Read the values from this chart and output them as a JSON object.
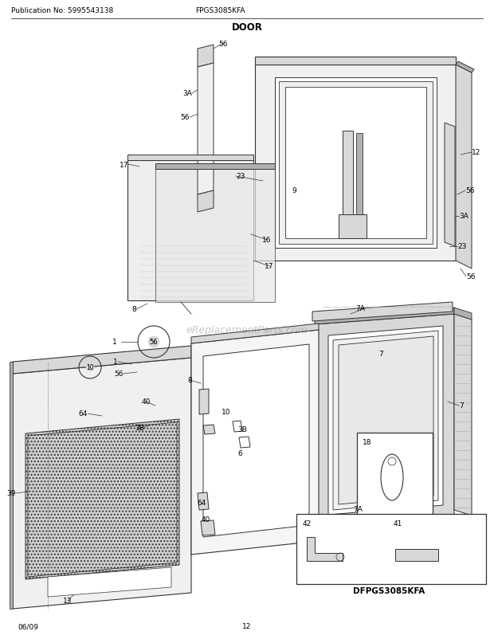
{
  "title": "DOOR",
  "pub_no": "Publication No: 5995543138",
  "model": "FPGS3085KFA",
  "diagram_model": "DFPGS3085KFA",
  "date": "06/09",
  "page": "12",
  "bg_color": "#ffffff",
  "fig_width": 6.2,
  "fig_height": 8.03,
  "dpi": 100,
  "line_color": "#333333",
  "fill_light": "#f0f0f0",
  "fill_mid": "#d8d8d8",
  "fill_dark": "#b0b0b0",
  "fill_hatched": "#c8c8c8"
}
